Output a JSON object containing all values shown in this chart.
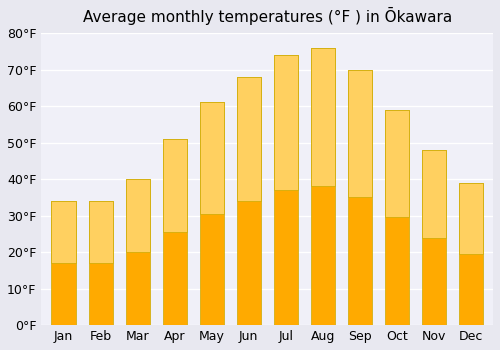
{
  "title": "Average monthly temperatures (°F ) in Ōkawara",
  "months": [
    "Jan",
    "Feb",
    "Mar",
    "Apr",
    "May",
    "Jun",
    "Jul",
    "Aug",
    "Sep",
    "Oct",
    "Nov",
    "Dec"
  ],
  "values": [
    34,
    34,
    40,
    51,
    61,
    68,
    74,
    76,
    70,
    59,
    48,
    39
  ],
  "bar_color_top": "#FFAA00",
  "bar_color_bottom": "#FFD060",
  "background_color": "#e8e8f0",
  "plot_bg_color": "#f0f0f8",
  "grid_color": "#ffffff",
  "ylim": [
    0,
    80
  ],
  "yticks": [
    0,
    10,
    20,
    30,
    40,
    50,
    60,
    70,
    80
  ],
  "ytick_labels": [
    "0°F",
    "10°F",
    "20°F",
    "30°F",
    "40°F",
    "50°F",
    "60°F",
    "70°F",
    "80°F"
  ],
  "title_fontsize": 11,
  "tick_fontsize": 9
}
